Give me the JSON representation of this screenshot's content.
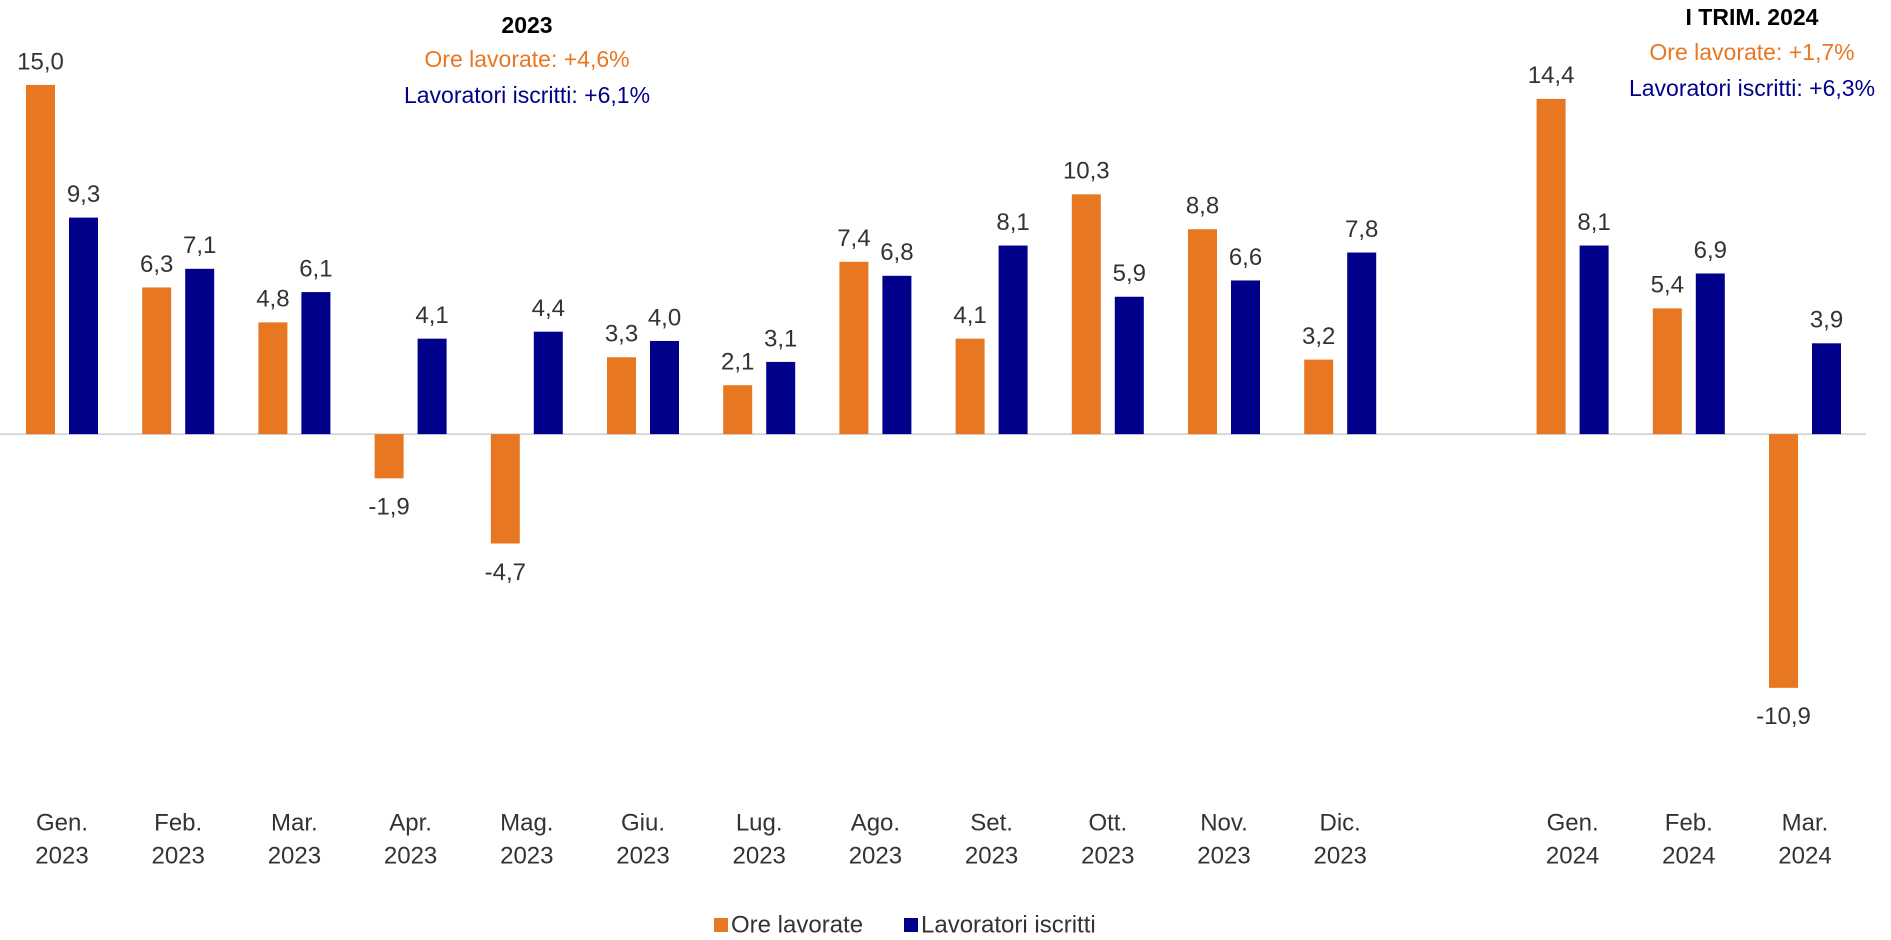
{
  "chart_data": {
    "type": "bar",
    "categories": [
      [
        "Gen.",
        "2023"
      ],
      [
        "Feb.",
        "2023"
      ],
      [
        "Mar.",
        "2023"
      ],
      [
        "Apr.",
        "2023"
      ],
      [
        "Mag.",
        "2023"
      ],
      [
        "Giu.",
        "2023"
      ],
      [
        "Lug.",
        "2023"
      ],
      [
        "Ago.",
        "2023"
      ],
      [
        "Set.",
        "2023"
      ],
      [
        "Ott.",
        "2023"
      ],
      [
        "Nov.",
        "2023"
      ],
      [
        "Dic.",
        "2023"
      ],
      null,
      [
        "Gen.",
        "2024"
      ],
      [
        "Feb.",
        "2024"
      ],
      [
        "Mar.",
        "2024"
      ]
    ],
    "series": [
      {
        "name": "Ore lavorate",
        "color": "#E87722",
        "values": [
          15.0,
          6.3,
          4.8,
          -1.9,
          -4.7,
          3.3,
          2.1,
          7.4,
          4.1,
          10.3,
          8.8,
          3.2,
          null,
          14.4,
          5.4,
          -10.9
        ],
        "value_labels": [
          "15,0",
          "6,3",
          "4,8",
          "-1,9",
          "-4,7",
          "3,3",
          "2,1",
          "7,4",
          "4,1",
          "10,3",
          "8,8",
          "3,2",
          null,
          "14,4",
          "5,4",
          "-10,9"
        ]
      },
      {
        "name": "Lavoratori iscritti",
        "color": "#00008B",
        "values": [
          9.3,
          7.1,
          6.1,
          4.1,
          4.4,
          4.0,
          3.1,
          6.8,
          8.1,
          5.9,
          6.6,
          7.8,
          null,
          8.1,
          6.9,
          3.9
        ],
        "value_labels": [
          "9,3",
          "7,1",
          "6,1",
          "4,1",
          "4,4",
          "4,0",
          "3,1",
          "6,8",
          "8,1",
          "5,9",
          "6,6",
          "7,8",
          null,
          "8,1",
          "6,9",
          "3,9"
        ]
      }
    ],
    "ylim": [
      -14,
      16.5
    ],
    "annotations": [
      {
        "title": "2023",
        "lines": [
          "Ore lavorate: +4,6%",
          "Lavoratori iscritti: +6,1%"
        ]
      },
      {
        "title": "I TRIM. 2024",
        "lines": [
          "Ore lavorate: +1,7%",
          "Lavoratori iscritti: +6,3%"
        ]
      }
    ],
    "legend": "bottom"
  }
}
